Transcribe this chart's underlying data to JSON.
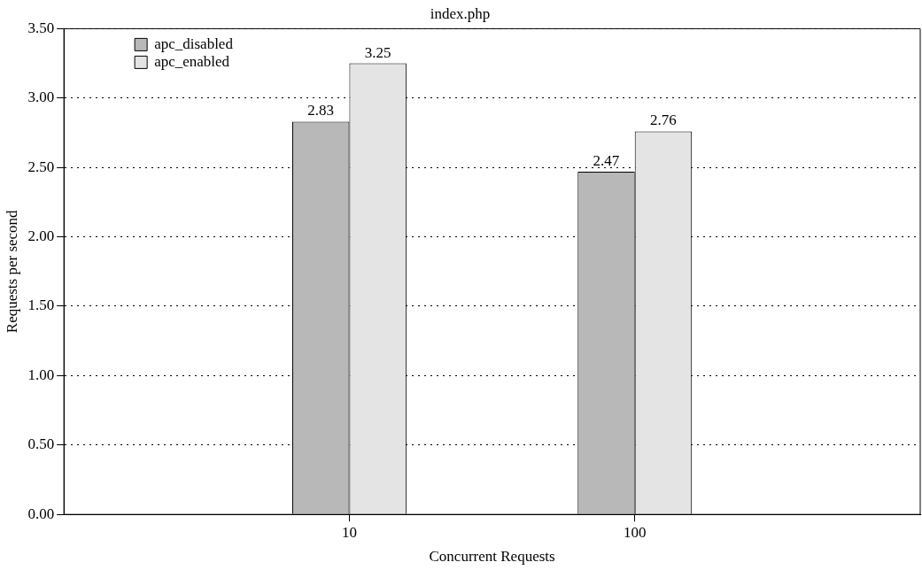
{
  "chart_data": {
    "type": "bar",
    "title": "index.php",
    "xlabel": "Concurrent Requests",
    "ylabel": "Requests per second",
    "categories": [
      "10",
      "100"
    ],
    "series": [
      {
        "name": "apc_disabled",
        "color": "#b8b8b8",
        "values": [
          2.83,
          2.47
        ]
      },
      {
        "name": "apc_enabled",
        "color": "#e4e4e4",
        "values": [
          3.25,
          2.76
        ]
      }
    ],
    "ylim": [
      0,
      3.5
    ],
    "yticks": [
      {
        "value": 0,
        "label": "0.00"
      },
      {
        "value": 0.5,
        "label": "0.50"
      },
      {
        "value": 1,
        "label": "1.00"
      },
      {
        "value": 1.5,
        "label": "1.50"
      },
      {
        "value": 2,
        "label": "2.00"
      },
      {
        "value": 2.5,
        "label": "2.50"
      },
      {
        "value": 3,
        "label": "3.00"
      },
      {
        "value": 3.5,
        "label": "3.50"
      }
    ],
    "grid": "y",
    "legend": "top left",
    "data_labels": true
  }
}
